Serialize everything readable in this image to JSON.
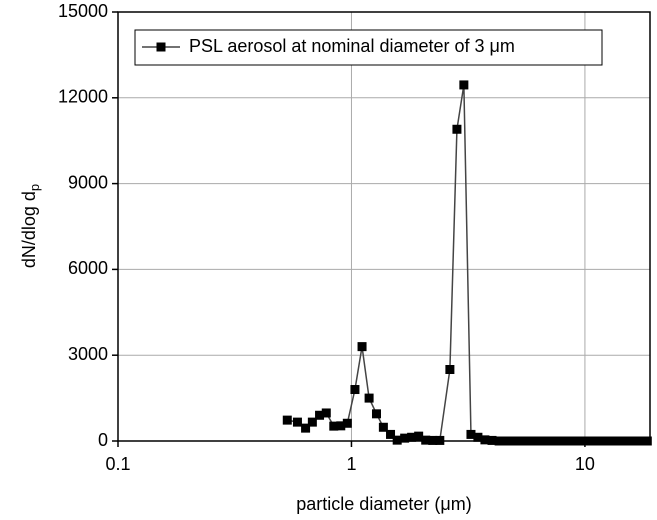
{
  "chart_data": {
    "type": "line",
    "x_label": "particle diameter (μm)",
    "y_label": "dN/dlog d",
    "y_label_subscript": "p",
    "legend": "top-left",
    "grid": true,
    "xscale": "log",
    "xlim": [
      0.1,
      19
    ],
    "xticks": [
      0.1,
      1,
      10
    ],
    "ylim": [
      0,
      15000
    ],
    "yticks": [
      0,
      3000,
      6000,
      9000,
      12000,
      15000
    ],
    "x": [
      0.531,
      0.587,
      0.636,
      0.68,
      0.73,
      0.78,
      0.84,
      0.9,
      0.96,
      1.035,
      1.11,
      1.19,
      1.28,
      1.37,
      1.47,
      1.57,
      1.69,
      1.81,
      1.94,
      2.08,
      2.23,
      2.39,
      2.64,
      2.83,
      3.03,
      3.25,
      3.48,
      3.73,
      4.0,
      4.29,
      4.6,
      4.94,
      5.29,
      5.67,
      6.08,
      6.52,
      6.99,
      7.49,
      8.03,
      8.61,
      9.23,
      9.9,
      10.6,
      11.4,
      12.2,
      13.1,
      14.0,
      15.0,
      16.1,
      17.3,
      18.5
    ],
    "series": [
      {
        "name": "PSL aerosol at nominal diameter of 3 μm",
        "color": "#000000",
        "line_color": "#444444",
        "values": [
          730,
          660,
          450,
          660,
          900,
          980,
          520,
          530,
          620,
          1800,
          3300,
          1500,
          950,
          480,
          230,
          30,
          100,
          130,
          170,
          30,
          20,
          20,
          2500,
          10900,
          12450,
          230,
          130,
          40,
          20,
          0,
          0,
          0,
          0,
          0,
          0,
          0,
          0,
          0,
          0,
          0,
          0,
          0,
          0,
          0,
          0,
          0,
          0,
          0,
          0,
          0,
          0
        ]
      }
    ]
  }
}
